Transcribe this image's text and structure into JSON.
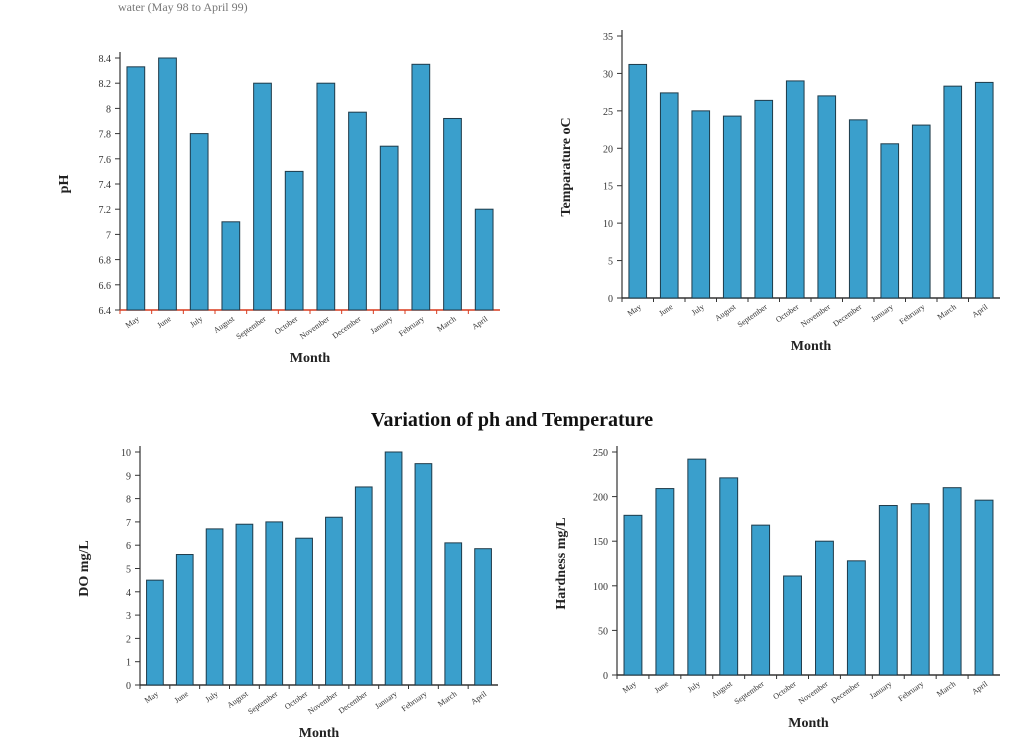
{
  "caption": "water (May 98 to April 99)",
  "title": "Variation of ph and Temperature",
  "colors": {
    "bar": "#3a9fcc",
    "bar_stroke": "#1f3b4a",
    "axis": "#333333",
    "baseline_red": "#d93c1f"
  },
  "chart_data": [
    {
      "type": "bar",
      "ylabel": "pH",
      "xlabel": "Month",
      "ylim": [
        6.4,
        8.4
      ],
      "ytick_labels": [
        "6.4",
        "6.6",
        "6.8",
        "7",
        "7.2",
        "7.4",
        "7.6",
        "7.8",
        "8",
        "8.2",
        "8.4"
      ],
      "categories": [
        "May",
        "June",
        "July",
        "August",
        "September",
        "October",
        "November",
        "December",
        "January",
        "February",
        "March",
        "April"
      ],
      "values": [
        8.33,
        8.4,
        7.8,
        7.1,
        8.2,
        7.5,
        8.2,
        7.97,
        7.7,
        8.35,
        7.92,
        7.2
      ]
    },
    {
      "type": "bar",
      "ylabel": "Temparature oC",
      "xlabel": "Month",
      "ylim": [
        0,
        35
      ],
      "ytick_labels": [
        "0",
        "5",
        "10",
        "15",
        "20",
        "25",
        "30",
        "35"
      ],
      "categories": [
        "May",
        "June",
        "July",
        "August",
        "September",
        "October",
        "November",
        "December",
        "January",
        "February",
        "March",
        "April"
      ],
      "values": [
        31.2,
        27.4,
        25,
        24.3,
        26.4,
        29,
        27,
        23.8,
        20.6,
        23.1,
        28.3,
        28.8
      ]
    },
    {
      "type": "bar",
      "ylabel": "DO mg/L",
      "xlabel": "Month",
      "ylim": [
        0,
        10
      ],
      "ytick_labels": [
        "0",
        "1",
        "2",
        "3",
        "4",
        "5",
        "6",
        "7",
        "8",
        "9",
        "10"
      ],
      "categories": [
        "May",
        "June",
        "July",
        "August",
        "September",
        "October",
        "November",
        "December",
        "January",
        "February",
        "March",
        "April"
      ],
      "values": [
        4.5,
        5.6,
        6.7,
        6.9,
        7,
        6.3,
        7.2,
        8.5,
        10,
        9.5,
        6.1,
        5.85
      ]
    },
    {
      "type": "bar",
      "ylabel": "Hardness mg/L",
      "xlabel": "Month",
      "ylim": [
        0,
        250
      ],
      "ytick_labels": [
        "0",
        "50",
        "100",
        "150",
        "200",
        "250"
      ],
      "categories": [
        "May",
        "June",
        "July",
        "August",
        "September",
        "October",
        "November",
        "December",
        "January",
        "February",
        "March",
        "April"
      ],
      "values": [
        179,
        209,
        242,
        221,
        168,
        111,
        150,
        128,
        190,
        192,
        210,
        196
      ]
    }
  ]
}
